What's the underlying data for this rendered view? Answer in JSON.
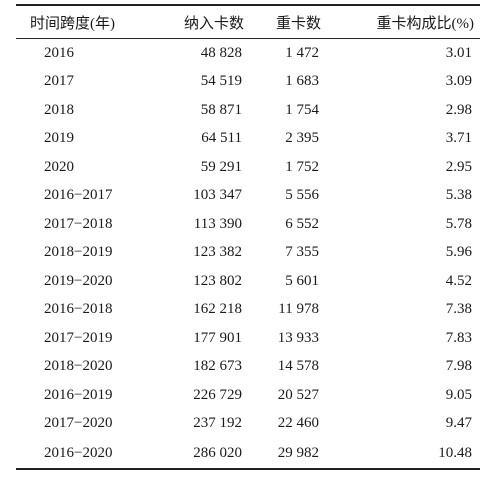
{
  "table": {
    "headers": [
      "时间跨度(年)",
      "纳入卡数",
      "重卡数",
      "重卡构成比(%)"
    ],
    "rows": [
      [
        "2016",
        "48 828",
        "1 472",
        "3.01"
      ],
      [
        "2017",
        "54 519",
        "1 683",
        "3.09"
      ],
      [
        "2018",
        "58 871",
        "1 754",
        "2.98"
      ],
      [
        "2019",
        "64 511",
        "2 395",
        "3.71"
      ],
      [
        "2020",
        "59 291",
        "1 752",
        "2.95"
      ],
      [
        "2016−2017",
        "103 347",
        "5 556",
        "5.38"
      ],
      [
        "2017−2018",
        "113 390",
        "6 552",
        "5.78"
      ],
      [
        "2018−2019",
        "123 382",
        "7 355",
        "5.96"
      ],
      [
        "2019−2020",
        "123 802",
        "5 601",
        "4.52"
      ],
      [
        "2016−2018",
        "162 218",
        "11 978",
        "7.38"
      ],
      [
        "2017−2019",
        "177 901",
        "13 933",
        "7.83"
      ],
      [
        "2018−2020",
        "182 673",
        "14 578",
        "7.98"
      ],
      [
        "2016−2019",
        "226 729",
        "20 527",
        "9.05"
      ],
      [
        "2017−2020",
        "237 192",
        "22 460",
        "9.47"
      ],
      [
        "2016−2020",
        "286 020",
        "29 982",
        "10.48"
      ]
    ]
  }
}
